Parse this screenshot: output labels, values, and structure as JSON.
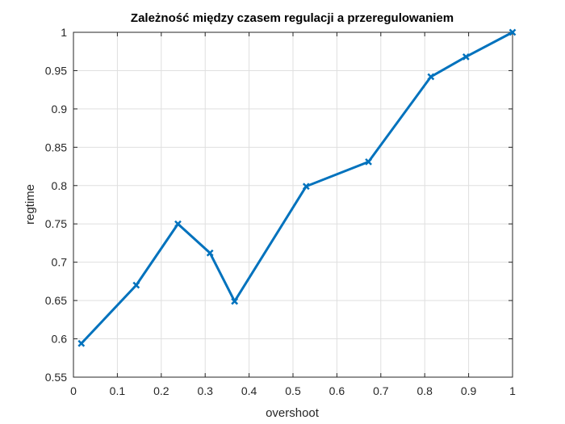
{
  "chart_data": {
    "type": "line",
    "title": "Zależność między czasem regulacji a przeregulowaniem",
    "xlabel": "overshoot",
    "ylabel": "regtime",
    "xlim": [
      0,
      1
    ],
    "ylim": [
      0.55,
      1
    ],
    "x_ticks": [
      "0",
      "0.1",
      "0.2",
      "0.3",
      "0.4",
      "0.5",
      "0.6",
      "0.7",
      "0.8",
      "0.9",
      "1"
    ],
    "y_ticks": [
      "0.55",
      "0.6",
      "0.65",
      "0.7",
      "0.75",
      "0.8",
      "0.85",
      "0.9",
      "0.95",
      "1"
    ],
    "grid": true,
    "legend": "none",
    "marker": "x",
    "line_color": "#0072BD",
    "series": [
      {
        "x": [
          0.018,
          0.143,
          0.238,
          0.311,
          0.367,
          0.53,
          0.672,
          0.814,
          0.894,
          1.0
        ],
        "y": [
          0.594,
          0.67,
          0.75,
          0.712,
          0.649,
          0.799,
          0.831,
          0.942,
          0.968,
          1.0
        ]
      }
    ]
  }
}
